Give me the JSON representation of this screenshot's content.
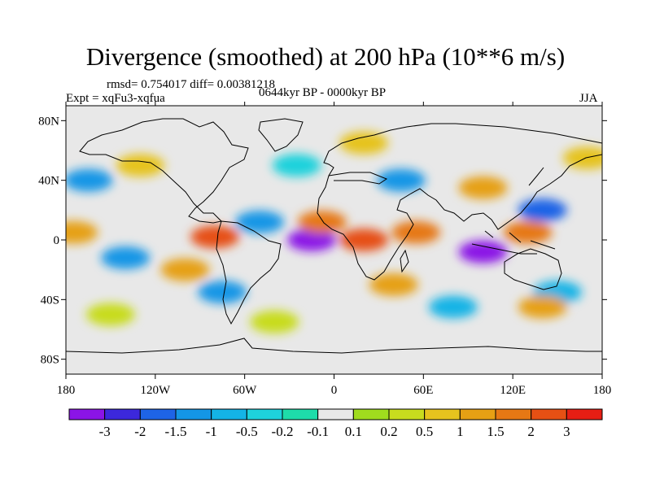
{
  "title": "Divergence (smoothed) at 200 hPa (10**6 m/s)",
  "stats": "rmsd= 0.754017 diff= 0.00381218",
  "experiment": "Expt = xqFu3-xqfua",
  "period": "0644kyr BP - 0000kyr BP",
  "season": "JJA",
  "axes": {
    "lat_ticks": [
      {
        "lat": 80,
        "label": "80N"
      },
      {
        "lat": 40,
        "label": "40N"
      },
      {
        "lat": 0,
        "label": "0"
      },
      {
        "lat": -40,
        "label": "40S"
      },
      {
        "lat": -80,
        "label": "80S"
      }
    ],
    "lon_ticks": [
      {
        "lon": -180,
        "label": "180"
      },
      {
        "lon": -120,
        "label": "120W"
      },
      {
        "lon": -60,
        "label": "60W"
      },
      {
        "lon": 0,
        "label": "0"
      },
      {
        "lon": 60,
        "label": "60E"
      },
      {
        "lon": 120,
        "label": "120E"
      },
      {
        "lon": 180,
        "label": "180"
      }
    ],
    "lat_range": [
      -90,
      90
    ],
    "lon_range": [
      -180,
      180
    ]
  },
  "colorbar": {
    "colors": [
      "#8b14e6",
      "#3c28dc",
      "#1e64e6",
      "#1496e6",
      "#14b4e6",
      "#1ed2dc",
      "#1edcaa",
      "#e8e8e8",
      "#a0dc1e",
      "#c8dc1e",
      "#e6c31e",
      "#e6a014",
      "#e67814",
      "#e65014",
      "#e61e14"
    ],
    "labels": [
      "-3",
      "-2",
      "-1.5",
      "-1",
      "-0.5",
      "-0.2",
      "-0.1",
      "0.1",
      "0.2",
      "0.5",
      "1",
      "1.5",
      "2",
      "3"
    ]
  },
  "anomaly_features": [
    {
      "lon": -15,
      "lat": 0,
      "level": 0
    },
    {
      "lon": 100,
      "lat": -8,
      "level": 0
    },
    {
      "lon": 140,
      "lat": 20,
      "level": 2
    },
    {
      "lon": 45,
      "lat": 40,
      "level": 3
    },
    {
      "lon": -165,
      "lat": 40,
      "level": 3
    },
    {
      "lon": -50,
      "lat": 12,
      "level": 3
    },
    {
      "lon": -140,
      "lat": -12,
      "level": 3
    },
    {
      "lon": -75,
      "lat": -35,
      "level": 3
    },
    {
      "lon": 150,
      "lat": -35,
      "level": 4
    },
    {
      "lon": 80,
      "lat": -45,
      "level": 4
    },
    {
      "lon": -25,
      "lat": 50,
      "level": 5
    },
    {
      "lon": -80,
      "lat": 2,
      "level": 13
    },
    {
      "lon": 20,
      "lat": 0,
      "level": 13
    },
    {
      "lon": -8,
      "lat": 12,
      "level": 12
    },
    {
      "lon": 55,
      "lat": 5,
      "level": 12
    },
    {
      "lon": 130,
      "lat": 5,
      "level": 12
    },
    {
      "lon": -175,
      "lat": 5,
      "level": 11
    },
    {
      "lon": -100,
      "lat": -20,
      "level": 11
    },
    {
      "lon": 40,
      "lat": -30,
      "level": 11
    },
    {
      "lon": 140,
      "lat": -45,
      "level": 11
    },
    {
      "lon": -130,
      "lat": 50,
      "level": 10
    },
    {
      "lon": 100,
      "lat": 35,
      "level": 11
    },
    {
      "lon": 20,
      "lat": 65,
      "level": 10
    },
    {
      "lon": -40,
      "lat": -55,
      "level": 9
    },
    {
      "lon": -150,
      "lat": -50,
      "level": 9
    },
    {
      "lon": 170,
      "lat": 55,
      "level": 10
    }
  ]
}
